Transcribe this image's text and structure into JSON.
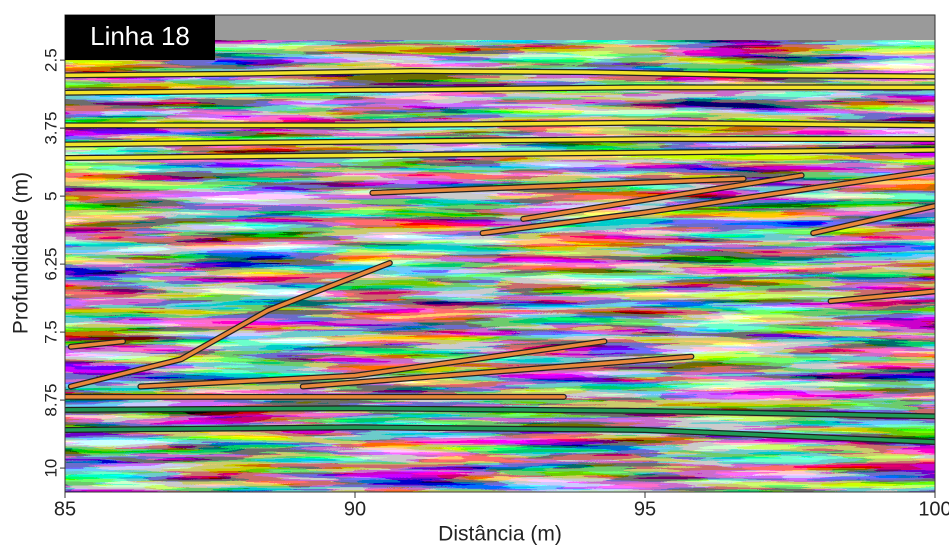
{
  "chart_data": {
    "type": "line",
    "title": "Linha 18",
    "xlabel": "Distância (m)",
    "ylabel": "Profundidade (m)",
    "xlim": [
      85,
      100
    ],
    "xticks": [
      85,
      90,
      95,
      100
    ],
    "ylim": [
      1.67,
      10.44
    ],
    "yticks": [
      2.5,
      3.75,
      5,
      6.25,
      7.5,
      8.75,
      10
    ],
    "invert_y": true,
    "series": [
      {
        "color": "#f2e22a",
        "x": [
          85,
          88,
          91,
          94,
          97,
          100
        ],
        "values": [
          2.78,
          2.75,
          2.7,
          2.72,
          2.78,
          2.8
        ]
      },
      {
        "color": "#f2e22a",
        "x": [
          85,
          90,
          95,
          100
        ],
        "values": [
          3.1,
          3.05,
          3.0,
          3.0
        ]
      },
      {
        "color": "#f2e22a",
        "x": [
          85,
          90,
          95,
          100
        ],
        "values": [
          3.7,
          3.7,
          3.65,
          3.7
        ]
      },
      {
        "color": "#f2e22a",
        "x": [
          85,
          90,
          95,
          100
        ],
        "values": [
          4.05,
          4.0,
          3.95,
          3.95
        ]
      },
      {
        "color": "#f2e22a",
        "x": [
          85,
          90,
          95,
          100
        ],
        "values": [
          4.3,
          4.25,
          4.2,
          4.15
        ]
      },
      {
        "color": "#e8873a",
        "x": [
          90.3,
          96.7
        ],
        "values": [
          4.94,
          4.68
        ]
      },
      {
        "color": "#e8873a",
        "x": [
          92.2,
          95,
          100
        ],
        "values": [
          5.68,
          5.3,
          4.53
        ]
      },
      {
        "color": "#e8873a",
        "x": [
          92.9,
          97.7
        ],
        "values": [
          5.42,
          4.62
        ]
      },
      {
        "color": "#e8873a",
        "x": [
          97.9,
          100
        ],
        "values": [
          5.68,
          5.18
        ]
      },
      {
        "color": "#e8873a",
        "x": [
          98.2,
          100
        ],
        "values": [
          6.93,
          6.75
        ]
      },
      {
        "color": "#e8873a",
        "x": [
          85.1,
          87,
          88.5,
          90.6
        ],
        "values": [
          8.5,
          8.0,
          7.1,
          6.23
        ]
      },
      {
        "color": "#e8873a",
        "x": [
          86.3,
          90,
          94.3
        ],
        "values": [
          8.5,
          8.3,
          7.67
        ]
      },
      {
        "color": "#e8873a",
        "x": [
          89.1,
          95.8
        ],
        "values": [
          8.5,
          7.95
        ]
      },
      {
        "color": "#e8873a",
        "x": [
          85.1,
          86
        ],
        "values": [
          7.77,
          7.67
        ]
      },
      {
        "color": "#e8873a",
        "x": [
          85,
          93.6
        ],
        "values": [
          8.69,
          8.69
        ]
      },
      {
        "color": "#1f9a55",
        "x": [
          85,
          90,
          95,
          100
        ],
        "values": [
          8.93,
          8.9,
          8.95,
          9.05
        ]
      },
      {
        "color": "#1f9a55",
        "x": [
          85,
          90,
          95,
          100
        ],
        "values": [
          9.3,
          9.25,
          9.3,
          9.52
        ]
      }
    ]
  }
}
